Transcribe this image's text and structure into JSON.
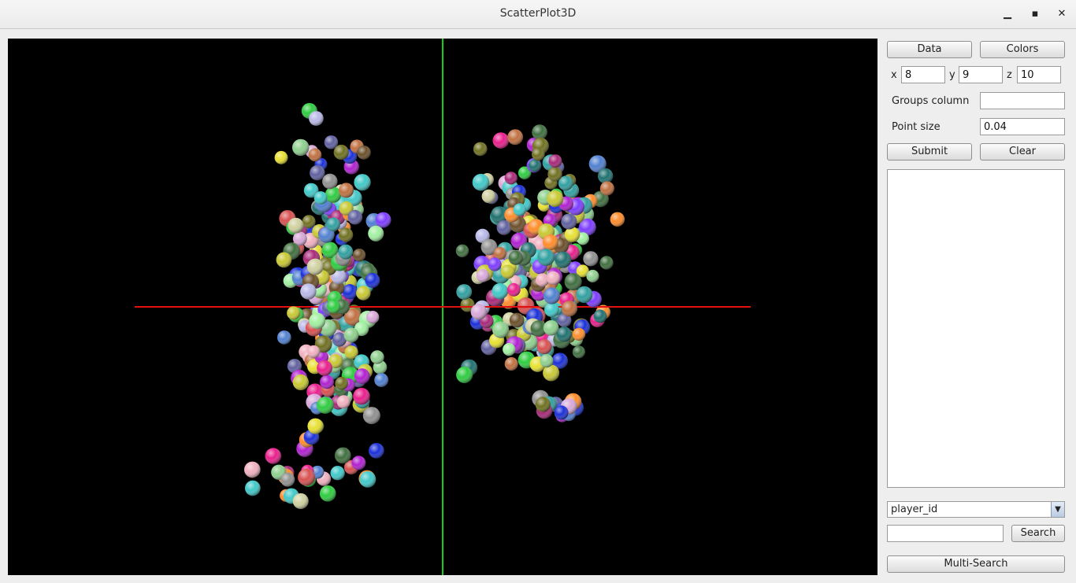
{
  "window": {
    "title": "ScatterPlot3D",
    "minimize": "▁",
    "maximize": "▪",
    "close": "✕"
  },
  "colors": {
    "canvas_bg": "#000000",
    "x_axis": "#e01010",
    "y_axis": "#10d010"
  },
  "controls": {
    "data_button": "Data",
    "colors_button": "Colors",
    "x_label": "x",
    "x_value": "8",
    "y_label": "y",
    "y_value": "9",
    "z_label": "z",
    "z_value": "10",
    "groups_label": "Groups column",
    "groups_value": "",
    "point_size_label": "Point size",
    "point_size_value": "0.04",
    "submit_button": "Submit",
    "clear_button": "Clear",
    "column_select": "player_id",
    "search_value": "",
    "search_button": "Search",
    "multisearch_button": "Multi-Search"
  }
}
